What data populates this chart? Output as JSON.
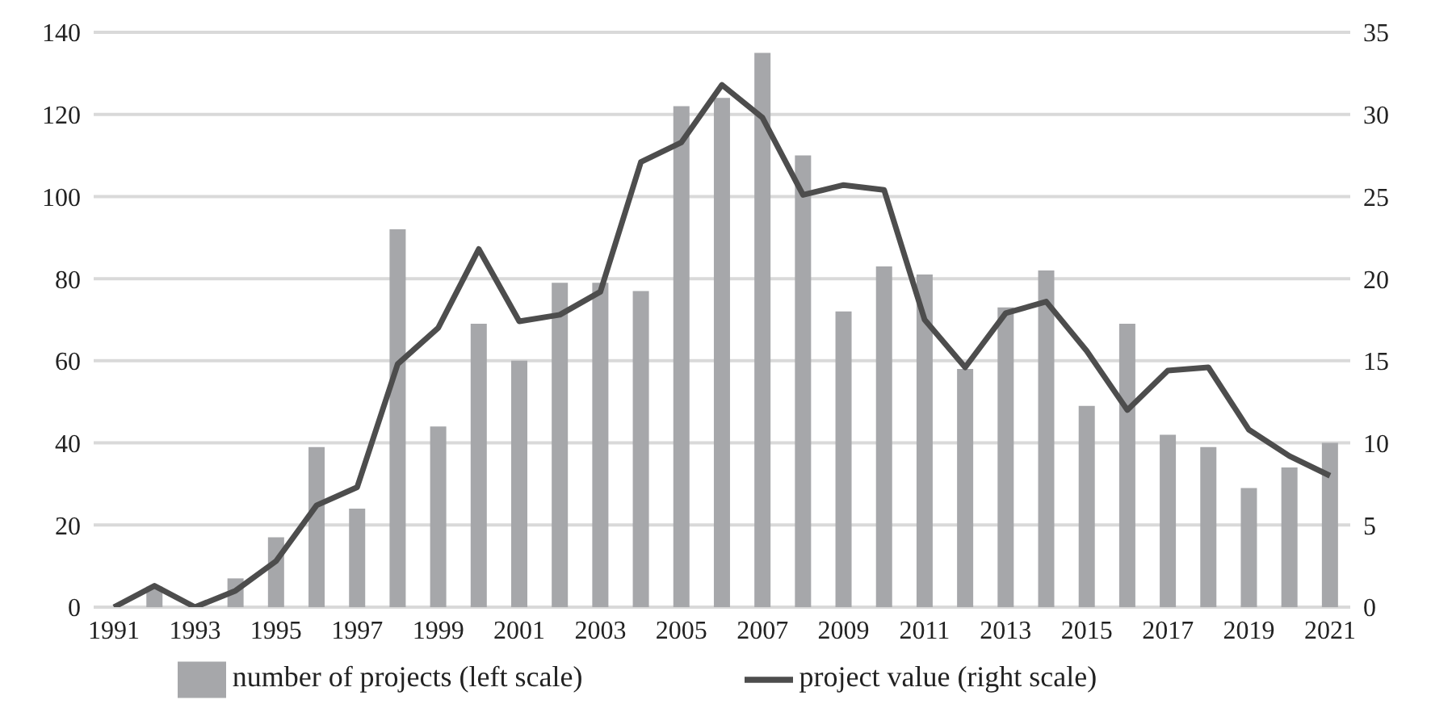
{
  "chart_data": {
    "type": "bar",
    "categories": [
      "1991",
      null,
      "1993",
      null,
      "1995",
      null,
      "1997",
      null,
      "1999",
      null,
      "2001",
      null,
      "2003",
      null,
      "2005",
      null,
      "2007",
      null,
      "2009",
      null,
      "2011",
      null,
      "2013",
      null,
      "2015",
      null,
      "2017",
      null,
      "2019",
      null,
      "2021"
    ],
    "series": [
      {
        "name": "number of projects (left scale)",
        "color": "#a6a7aa",
        "values": [
          0,
          5,
          0,
          7,
          17,
          39,
          24,
          92,
          44,
          69,
          60,
          79,
          79,
          77,
          122,
          124,
          135,
          110,
          72,
          83,
          81,
          58,
          73,
          82,
          49,
          69,
          42,
          39,
          29,
          34,
          40
        ]
      },
      {
        "name": "project value (right scale)",
        "type": "line",
        "axis": "y2",
        "color": "#4d4d4d",
        "values": [
          0,
          1.3,
          0,
          1,
          2.8,
          6.2,
          7.3,
          14.8,
          17,
          21.8,
          17.4,
          17.8,
          19.2,
          27.1,
          28.3,
          31.8,
          29.8,
          25.1,
          25.7,
          25.4,
          17.5,
          14.6,
          17.9,
          18.6,
          15.6,
          12,
          14.4,
          14.6,
          10.8,
          9.2,
          8
        ]
      }
    ],
    "ylim": [
      0,
      140
    ],
    "yticks": [
      0,
      20,
      40,
      60,
      80,
      100,
      120,
      140
    ],
    "y2lim": [
      0,
      35
    ],
    "y2ticks": [
      0,
      5,
      10,
      15,
      20,
      25,
      30,
      35
    ],
    "grid": "y",
    "legend": "bottom",
    "marker": "none",
    "line_style": "solid"
  }
}
